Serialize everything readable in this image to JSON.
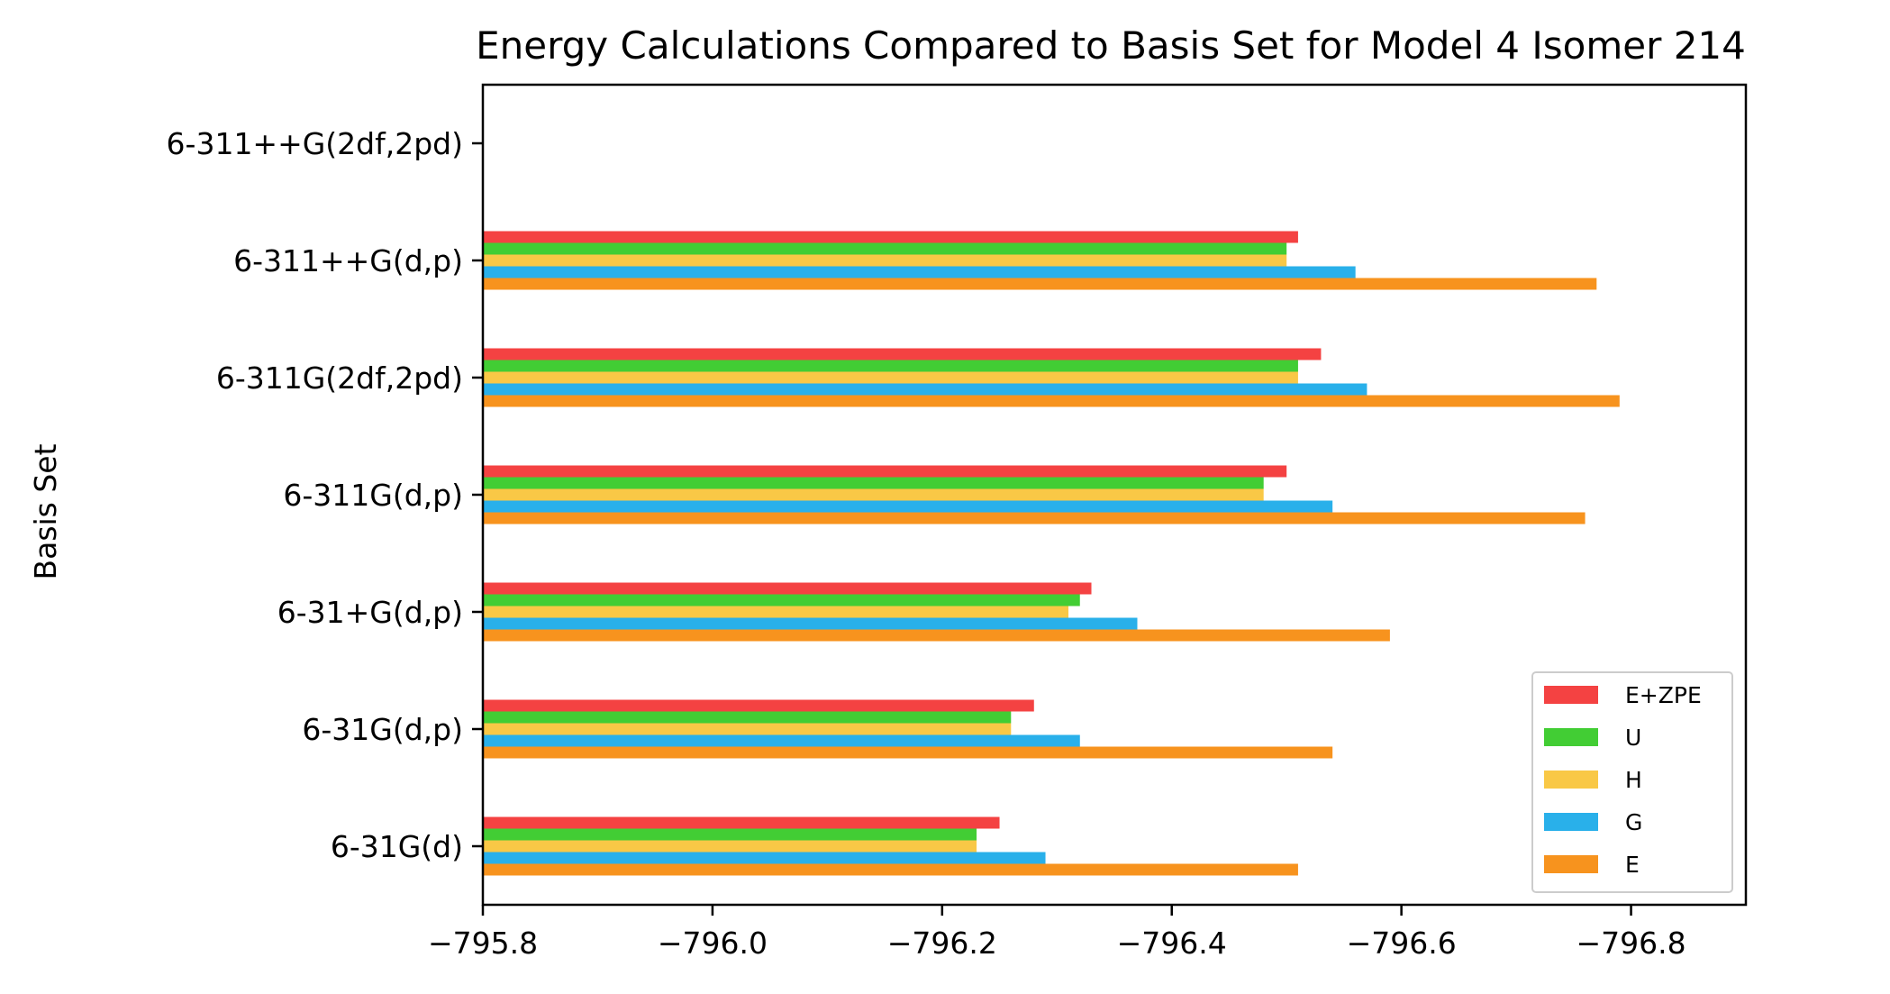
{
  "chart_data": {
    "type": "bar",
    "orientation": "horizontal",
    "title": "Energy Calculations Compared to Basis Set for Model 4 Isomer 214",
    "ylabel": "Basis Set",
    "xlabel": "",
    "xlim": [
      -795.8,
      -796.9
    ],
    "x_axis_reversed": true,
    "xticks": [
      -795.8,
      -796.0,
      -796.2,
      -796.4,
      -796.6,
      -796.8
    ],
    "xtick_labels": [
      "−795.8",
      "−796.0",
      "−796.2",
      "−796.4",
      "−796.6",
      "−796.8"
    ],
    "categories": [
      "6-31G(d)",
      "6-31G(d,p)",
      "6-31+G(d,p)",
      "6-311G(d,p)",
      "6-311G(2df,2pd)",
      "6-311++G(d,p)",
      "6-311++G(2df,2pd)"
    ],
    "series": [
      {
        "name": "E",
        "color": "#F7931E",
        "values": [
          -796.51,
          -796.54,
          -796.59,
          -796.76,
          -796.79,
          -796.77,
          null
        ]
      },
      {
        "name": "G",
        "color": "#29B0EA",
        "values": [
          -796.29,
          -796.32,
          -796.37,
          -796.54,
          -796.57,
          -796.56,
          null
        ]
      },
      {
        "name": "H",
        "color": "#F9C846",
        "values": [
          -796.23,
          -796.26,
          -796.31,
          -796.48,
          -796.51,
          -796.5,
          null
        ]
      },
      {
        "name": "U",
        "color": "#42CD34",
        "values": [
          -796.23,
          -796.26,
          -796.32,
          -796.48,
          -796.51,
          -796.5,
          null
        ]
      },
      {
        "name": "E+ZPE",
        "color": "#F44242",
        "values": [
          -796.25,
          -796.28,
          -796.33,
          -796.5,
          -796.53,
          -796.51,
          null
        ]
      }
    ],
    "legend": {
      "position": "lower-right",
      "order": [
        "E+ZPE",
        "U",
        "H",
        "G",
        "E"
      ]
    },
    "grid": false
  }
}
